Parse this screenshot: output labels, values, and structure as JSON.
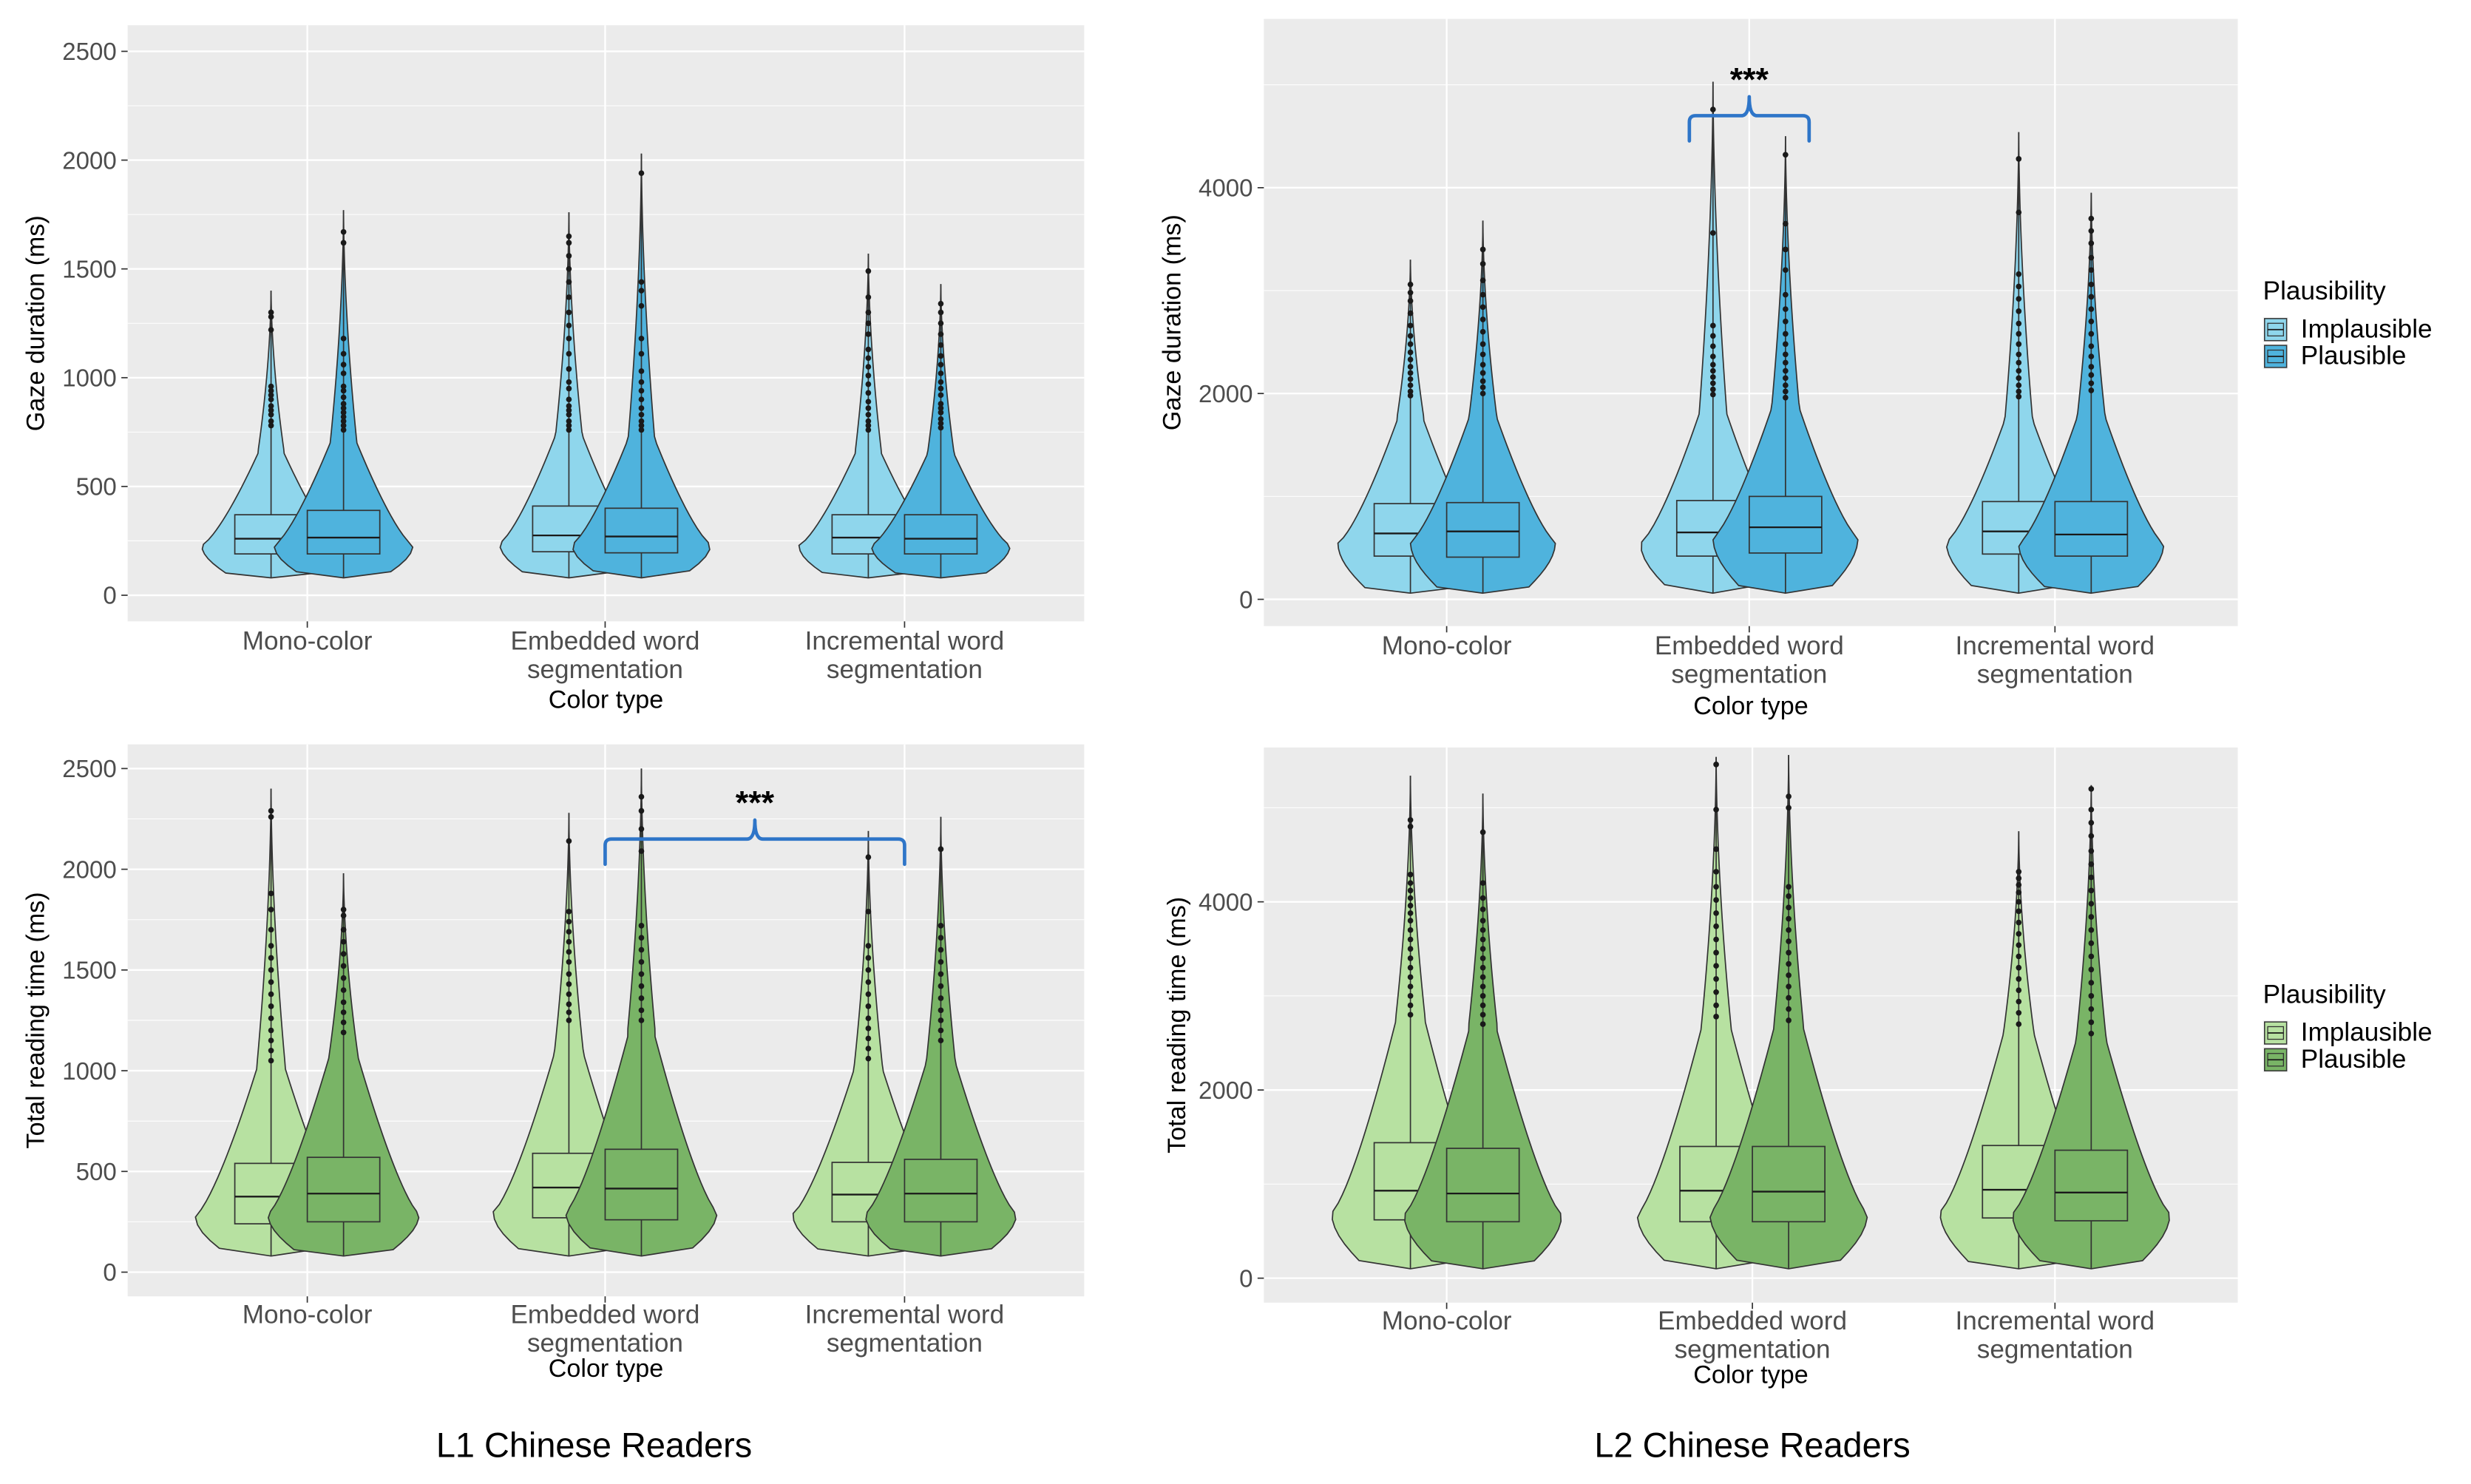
{
  "figure": {
    "footers": [
      "L1 Chinese Readers",
      "L2 Chinese Readers"
    ]
  },
  "chart_data": [
    {
      "id": "l1-gaze",
      "type": "violin",
      "title": "",
      "xlabel": "Color type",
      "ylabel": "Gaze duration (ms)",
      "ylim": [
        -120,
        2620
      ],
      "yticks": [
        0,
        500,
        1000,
        1500,
        2000,
        2500
      ],
      "categories": [
        "Mono-color",
        "Embedded word segmentation",
        "Incremental word segmentation"
      ],
      "category_labels": [
        [
          "Mono-color"
        ],
        [
          "Embedded word",
          "segmentation"
        ],
        [
          "Incremental word",
          "segmentation"
        ]
      ],
      "legend": null,
      "series": [
        {
          "name": "Implausible",
          "color": "#8fd6ec",
          "stats": [
            {
              "min": 80,
              "q1": 190,
              "median": 260,
              "q3": 370,
              "max": 1400,
              "mode": 230,
              "outliers": [
                1300,
                1280,
                1220,
                960,
                940,
                920,
                900,
                870,
                850,
                830,
                800,
                780
              ]
            },
            {
              "min": 80,
              "q1": 200,
              "median": 275,
              "q3": 410,
              "max": 1760,
              "mode": 240,
              "outliers": [
                1650,
                1620,
                1560,
                1500,
                1440,
                1370,
                1300,
                1240,
                1180,
                1110,
                1040,
                980,
                950,
                900,
                870,
                850,
                830,
                800,
                780,
                760
              ]
            },
            {
              "min": 80,
              "q1": 190,
              "median": 265,
              "q3": 370,
              "max": 1570,
              "mode": 230,
              "outliers": [
                1490,
                1370,
                1300,
                1250,
                1200,
                1130,
                1090,
                1050,
                1010,
                970,
                930,
                890,
                860,
                830,
                800,
                780,
                760
              ]
            }
          ]
        },
        {
          "name": "Plausible",
          "color": "#4fb3dd",
          "stats": [
            {
              "min": 80,
              "q1": 190,
              "median": 265,
              "q3": 390,
              "max": 1770,
              "mode": 230,
              "outliers": [
                1670,
                1620,
                1180,
                1110,
                1060,
                1020,
                960,
                940,
                910,
                880,
                860,
                840,
                820,
                800,
                780,
                760
              ]
            },
            {
              "min": 80,
              "q1": 195,
              "median": 270,
              "q3": 400,
              "max": 2030,
              "mode": 235,
              "outliers": [
                1940,
                1440,
                1400,
                1330,
                1180,
                1110,
                1030,
                980,
                940,
                900,
                860,
                830,
                800,
                780,
                760
              ]
            },
            {
              "min": 80,
              "q1": 190,
              "median": 260,
              "q3": 370,
              "max": 1430,
              "mode": 230,
              "outliers": [
                1340,
                1300,
                1250,
                1200,
                1150,
                1100,
                1060,
                1020,
                980,
                950,
                920,
                880,
                860,
                840,
                810,
                790,
                770
              ]
            }
          ]
        }
      ],
      "annotations": []
    },
    {
      "id": "l2-gaze",
      "type": "violin",
      "title": "",
      "xlabel": "Color type",
      "ylabel": "Gaze duration (ms)",
      "ylim": [
        -260,
        5640
      ],
      "yticks": [
        0,
        2000,
        4000
      ],
      "categories": [
        "Mono-color",
        "Embedded word segmentation",
        "Incremental word segmentation"
      ],
      "category_labels": [
        [
          "Mono-color"
        ],
        [
          "Embedded word",
          "segmentation"
        ],
        [
          "Incremental word",
          "segmentation"
        ]
      ],
      "legend": {
        "title": "Plausibility",
        "entries": [
          "Implausible",
          "Plausible"
        ],
        "position": "right"
      },
      "series": [
        {
          "name": "Implausible",
          "color": "#8fd6ec",
          "stats": [
            {
              "min": 60,
              "q1": 420,
              "median": 640,
              "q3": 930,
              "max": 3300,
              "mode": 550,
              "outliers": [
                3060,
                2980,
                2900,
                2780,
                2660,
                2560,
                2480,
                2400,
                2330,
                2260,
                2200,
                2140,
                2080,
                2020,
                1980
              ]
            },
            {
              "min": 60,
              "q1": 420,
              "median": 650,
              "q3": 960,
              "max": 5030,
              "mode": 550,
              "outliers": [
                4760,
                3560,
                2660,
                2560,
                2460,
                2360,
                2280,
                2220,
                2160,
                2100,
                2040,
                1990
              ]
            },
            {
              "min": 60,
              "q1": 440,
              "median": 660,
              "q3": 950,
              "max": 4540,
              "mode": 560,
              "outliers": [
                4280,
                3760,
                3160,
                3040,
                2920,
                2800,
                2680,
                2580,
                2480,
                2380,
                2300,
                2220,
                2150,
                2080,
                2020,
                1970
              ]
            }
          ]
        },
        {
          "name": "Plausible",
          "color": "#4fb3dd",
          "stats": [
            {
              "min": 60,
              "q1": 410,
              "median": 660,
              "q3": 940,
              "max": 3680,
              "mode": 560,
              "outliers": [
                3400,
                3260,
                3100,
                2960,
                2840,
                2720,
                2600,
                2480,
                2380,
                2280,
                2200,
                2120,
                2060,
                2000
              ]
            },
            {
              "min": 60,
              "q1": 450,
              "median": 700,
              "q3": 1000,
              "max": 4500,
              "mode": 600,
              "outliers": [
                4320,
                3650,
                3400,
                3200,
                2960,
                2820,
                2700,
                2580,
                2480,
                2380,
                2300,
                2220,
                2150,
                2080,
                2020,
                1960
              ]
            },
            {
              "min": 60,
              "q1": 420,
              "median": 630,
              "q3": 950,
              "max": 3950,
              "mode": 540,
              "outliers": [
                3700,
                3580,
                3460,
                3320,
                3200,
                3060,
                2940,
                2820,
                2700,
                2580,
                2460,
                2360,
                2260,
                2180,
                2100,
                2030
              ]
            }
          ]
        }
      ],
      "annotations": [
        {
          "label": "***",
          "from_category": 1,
          "to_category": 1,
          "y": 4700
        }
      ]
    },
    {
      "id": "l1-total",
      "type": "violin",
      "title": "",
      "xlabel": "Color type",
      "ylabel": "Total reading time (ms)",
      "ylim": [
        -120,
        2620
      ],
      "yticks": [
        0,
        500,
        1000,
        1500,
        2000,
        2500
      ],
      "categories": [
        "Mono-color",
        "Embedded word segmentation",
        "Incremental word segmentation"
      ],
      "category_labels": [
        [
          "Mono-color"
        ],
        [
          "Embedded word",
          "segmentation"
        ],
        [
          "Incremental word",
          "segmentation"
        ]
      ],
      "legend": null,
      "series": [
        {
          "name": "Implausible",
          "color": "#b7e1a1",
          "stats": [
            {
              "min": 80,
              "q1": 240,
              "median": 375,
              "q3": 540,
              "max": 2400,
              "mode": 280,
              "outliers": [
                2290,
                2260,
                1880,
                1800,
                1700,
                1620,
                1560,
                1500,
                1440,
                1380,
                1320,
                1260,
                1200,
                1150,
                1100,
                1050
              ]
            },
            {
              "min": 80,
              "q1": 270,
              "median": 420,
              "q3": 590,
              "max": 2280,
              "mode": 300,
              "outliers": [
                2140,
                1790,
                1740,
                1690,
                1640,
                1590,
                1540,
                1480,
                1430,
                1380,
                1330,
                1290,
                1250
              ]
            },
            {
              "min": 80,
              "q1": 250,
              "median": 385,
              "q3": 545,
              "max": 2190,
              "mode": 290,
              "outliers": [
                2060,
                1790,
                1620,
                1560,
                1500,
                1440,
                1380,
                1320,
                1260,
                1210,
                1160,
                1110,
                1060
              ]
            }
          ]
        },
        {
          "name": "Plausible",
          "color": "#79b466",
          "stats": [
            {
              "min": 80,
              "q1": 250,
              "median": 390,
              "q3": 570,
              "max": 1980,
              "mode": 290,
              "outliers": [
                1800,
                1770,
                1700,
                1640,
                1580,
                1520,
                1460,
                1400,
                1340,
                1290,
                1240,
                1190
              ]
            },
            {
              "min": 80,
              "q1": 260,
              "median": 415,
              "q3": 610,
              "max": 2500,
              "mode": 300,
              "outliers": [
                2360,
                2290,
                2200,
                2090,
                1720,
                1660,
                1600,
                1540,
                1480,
                1420,
                1360,
                1300,
                1250
              ]
            },
            {
              "min": 80,
              "q1": 250,
              "median": 390,
              "q3": 560,
              "max": 2260,
              "mode": 290,
              "outliers": [
                2100,
                1720,
                1660,
                1600,
                1540,
                1480,
                1420,
                1360,
                1300,
                1250,
                1200,
                1150
              ]
            }
          ]
        }
      ],
      "annotations": [
        {
          "label": "***",
          "from_category": 1,
          "to_category": 2,
          "y": 2150
        }
      ]
    },
    {
      "id": "l2-total",
      "type": "violin",
      "title": "",
      "xlabel": "Color type",
      "ylabel": "Total reading time (ms)",
      "ylim": [
        -260,
        5640
      ],
      "yticks": [
        0,
        2000,
        4000
      ],
      "categories": [
        "Mono-color",
        "Embedded word segmentation",
        "Incremental word segmentation"
      ],
      "category_labels": [
        [
          "Mono-color"
        ],
        [
          "Embedded word",
          "segmentation"
        ],
        [
          "Incremental word",
          "segmentation"
        ]
      ],
      "legend": {
        "title": "Plausibility",
        "entries": [
          "Implausible",
          "Plausible"
        ],
        "position": "right"
      },
      "series": [
        {
          "name": "Implausible",
          "color": "#b7e1a1",
          "stats": [
            {
              "min": 100,
              "q1": 620,
              "median": 930,
              "q3": 1440,
              "max": 5340,
              "mode": 700,
              "outliers": [
                4870,
                4800,
                4290,
                4200,
                4120,
                4040,
                3960,
                3880,
                3800,
                3700,
                3600,
                3500,
                3400,
                3300,
                3200,
                3100,
                3000,
                2900,
                2800
              ]
            },
            {
              "min": 100,
              "q1": 600,
              "median": 930,
              "q3": 1400,
              "max": 5540,
              "mode": 680,
              "outliers": [
                5460,
                4980,
                4560,
                4320,
                4160,
                4020,
                3880,
                3740,
                3600,
                3460,
                3320,
                3180,
                3040,
                2900,
                2780
              ]
            },
            {
              "min": 100,
              "q1": 640,
              "median": 940,
              "q3": 1410,
              "max": 4750,
              "mode": 710,
              "outliers": [
                4320,
                4250,
                4180,
                4100,
                4000,
                3900,
                3780,
                3660,
                3540,
                3420,
                3300,
                3180,
                3060,
                2940,
                2820,
                2700
              ]
            }
          ]
        },
        {
          "name": "Plausible",
          "color": "#79b466",
          "stats": [
            {
              "min": 100,
              "q1": 600,
              "median": 900,
              "q3": 1380,
              "max": 5150,
              "mode": 680,
              "outliers": [
                4740,
                4200,
                4040,
                3920,
                3800,
                3700,
                3600,
                3500,
                3400,
                3300,
                3200,
                3100,
                3000,
                2900,
                2800,
                2700
              ]
            },
            {
              "min": 100,
              "q1": 600,
              "median": 920,
              "q3": 1400,
              "max": 5560,
              "mode": 690,
              "outliers": [
                5120,
                5000,
                4160,
                4060,
                3940,
                3820,
                3700,
                3580,
                3460,
                3340,
                3220,
                3100,
                2980,
                2860,
                2740
              ]
            },
            {
              "min": 100,
              "q1": 610,
              "median": 910,
              "q3": 1360,
              "max": 5240,
              "mode": 690,
              "outliers": [
                5200,
                4980,
                4840,
                4700,
                4540,
                4400,
                4260,
                4120,
                3980,
                3840,
                3700,
                3560,
                3420,
                3280,
                3140,
                3000,
                2860,
                2720,
                2600
              ]
            }
          ]
        }
      ],
      "annotations": []
    }
  ]
}
